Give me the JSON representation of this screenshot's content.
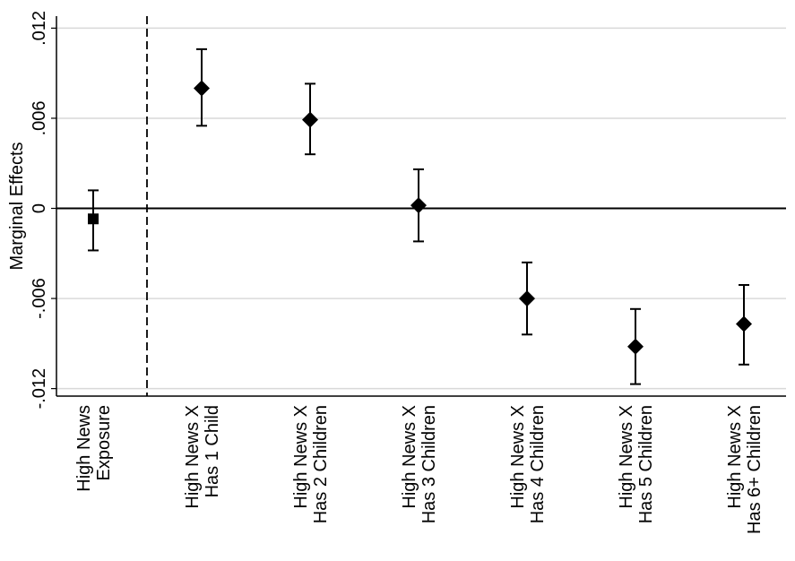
{
  "chart_data": {
    "type": "scatter",
    "title": "",
    "xlabel": "",
    "ylabel": "Marginal Effects",
    "ylim": [
      -0.0125,
      0.0128
    ],
    "yticks": [
      {
        "value": -0.012,
        "label": "-.012"
      },
      {
        "value": -0.006,
        "label": "-.006"
      },
      {
        "value": 0,
        "label": "0"
      },
      {
        "value": 0.006,
        "label": ".006"
      },
      {
        "value": 0.012,
        "label": ".012"
      }
    ],
    "grid": true,
    "reference_line": 0,
    "separator_after_index": 0,
    "categories": [
      {
        "lines": [
          "High News",
          "Exposure"
        ]
      },
      {
        "lines": [
          "High News X",
          "Has 1 Child"
        ]
      },
      {
        "lines": [
          "High News X",
          "Has 2 Children"
        ]
      },
      {
        "lines": [
          "High News X",
          "Has 3 Children"
        ]
      },
      {
        "lines": [
          "High News X",
          "Has 4 Children"
        ]
      },
      {
        "lines": [
          "High News X",
          "Has 5 Children"
        ]
      },
      {
        "lines": [
          "High News X",
          "Has 6+ Children"
        ]
      }
    ],
    "points": [
      {
        "marker": "square",
        "estimate": -0.0007,
        "ci_low": -0.0028,
        "ci_high": 0.0012
      },
      {
        "marker": "diamond",
        "estimate": 0.008,
        "ci_low": 0.0055,
        "ci_high": 0.0106
      },
      {
        "marker": "diamond",
        "estimate": 0.0059,
        "ci_low": 0.0036,
        "ci_high": 0.0083
      },
      {
        "marker": "diamond",
        "estimate": 0.0002,
        "ci_low": -0.0022,
        "ci_high": 0.0026
      },
      {
        "marker": "diamond",
        "estimate": -0.006,
        "ci_low": -0.0084,
        "ci_high": -0.0036
      },
      {
        "marker": "diamond",
        "estimate": -0.0092,
        "ci_low": -0.0117,
        "ci_high": -0.0067
      },
      {
        "marker": "diamond",
        "estimate": -0.0077,
        "ci_low": -0.0104,
        "ci_high": -0.0051
      }
    ]
  }
}
